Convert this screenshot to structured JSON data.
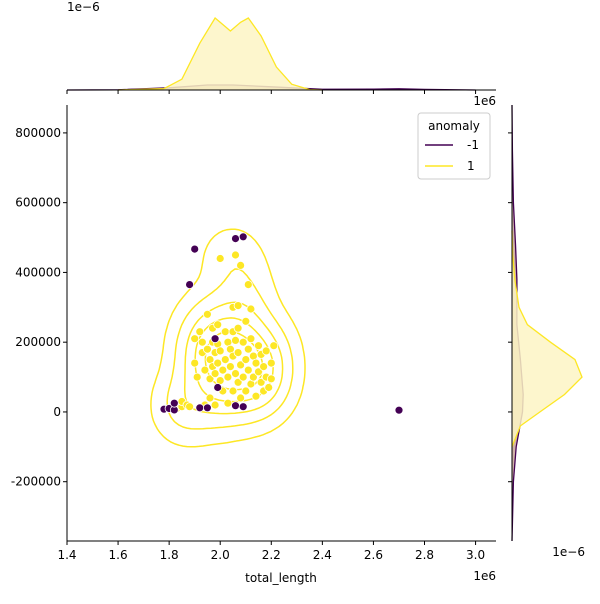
{
  "chart_data": {
    "type": "scatter",
    "xlabel": "total_length",
    "ylabel": "",
    "x_offset_label": "1e6",
    "top_offset_label": "1e−6",
    "right_top_offset_label": "1e6",
    "right_bottom_offset_label": "1e−6",
    "xlim": [
      1.4,
      3.08
    ],
    "ylim": [
      -370000,
      880000
    ],
    "x_ticks": [
      1.4,
      1.6,
      1.8,
      2.0,
      2.2,
      2.4,
      2.6,
      2.8,
      3.0
    ],
    "x_tick_labels": [
      "1.4",
      "1.6",
      "1.8",
      "2.0",
      "2.2",
      "2.4",
      "2.6",
      "2.8",
      "3.0"
    ],
    "y_ticks": [
      -200000,
      0,
      200000,
      400000,
      600000,
      800000
    ],
    "y_tick_labels": [
      "-200000",
      "0",
      "200000",
      "400000",
      "600000",
      "800000"
    ],
    "grid": false,
    "legend": {
      "title": "anomaly",
      "placement": "top-right",
      "entries": [
        {
          "label": "-1",
          "color": "#440154"
        },
        {
          "label": "1",
          "color": "#fde725"
        }
      ]
    },
    "series": [
      {
        "name": "-1",
        "color": "#440154",
        "points": [
          [
            1.78,
            8000
          ],
          [
            1.8,
            10000
          ],
          [
            1.82,
            6000
          ],
          [
            1.82,
            25000
          ],
          [
            1.88,
            365000
          ],
          [
            1.9,
            467000
          ],
          [
            1.92,
            12000
          ],
          [
            1.95,
            12000
          ],
          [
            1.98,
            210000
          ],
          [
            1.99,
            70000
          ],
          [
            2.06,
            497000
          ],
          [
            2.06,
            18000
          ],
          [
            2.09,
            502000
          ],
          [
            2.09,
            15000
          ],
          [
            2.7,
            5000
          ]
        ]
      },
      {
        "name": "1",
        "color": "#fde725",
        "points": [
          [
            1.83,
            10000
          ],
          [
            1.85,
            15000
          ],
          [
            1.85,
            30000
          ],
          [
            1.87,
            20000
          ],
          [
            1.88,
            15000
          ],
          [
            1.9,
            210000
          ],
          [
            1.9,
            140000
          ],
          [
            1.91,
            100000
          ],
          [
            1.92,
            230000
          ],
          [
            1.93,
            200000
          ],
          [
            1.93,
            170000
          ],
          [
            1.94,
            120000
          ],
          [
            1.94,
            20000
          ],
          [
            1.95,
            280000
          ],
          [
            1.95,
            180000
          ],
          [
            1.96,
            150000
          ],
          [
            1.96,
            95000
          ],
          [
            1.96,
            40000
          ],
          [
            1.97,
            240000
          ],
          [
            1.97,
            200000
          ],
          [
            1.97,
            130000
          ],
          [
            1.98,
            170000
          ],
          [
            1.98,
            110000
          ],
          [
            1.98,
            20000
          ],
          [
            1.99,
            250000
          ],
          [
            1.99,
            195000
          ],
          [
            1.99,
            140000
          ],
          [
            2.0,
            440000
          ],
          [
            2.0,
            175000
          ],
          [
            2.0,
            90000
          ],
          [
            2.01,
            120000
          ],
          [
            2.01,
            60000
          ],
          [
            2.02,
            230000
          ],
          [
            2.02,
            150000
          ],
          [
            2.03,
            200000
          ],
          [
            2.03,
            100000
          ],
          [
            2.03,
            25000
          ],
          [
            2.04,
            180000
          ],
          [
            2.04,
            130000
          ],
          [
            2.05,
            300000
          ],
          [
            2.05,
            230000
          ],
          [
            2.05,
            160000
          ],
          [
            2.05,
            60000
          ],
          [
            2.06,
            450000
          ],
          [
            2.06,
            205000
          ],
          [
            2.06,
            110000
          ],
          [
            2.07,
            305000
          ],
          [
            2.07,
            240000
          ],
          [
            2.07,
            170000
          ],
          [
            2.07,
            85000
          ],
          [
            2.08,
            420000
          ],
          [
            2.08,
            135000
          ],
          [
            2.08,
            40000
          ],
          [
            2.09,
            200000
          ],
          [
            2.09,
            100000
          ],
          [
            2.1,
            260000
          ],
          [
            2.1,
            150000
          ],
          [
            2.1,
            60000
          ],
          [
            2.11,
            365000
          ],
          [
            2.11,
            180000
          ],
          [
            2.11,
            120000
          ],
          [
            2.12,
            295000
          ],
          [
            2.12,
            210000
          ],
          [
            2.12,
            80000
          ],
          [
            2.13,
            160000
          ],
          [
            2.13,
            100000
          ],
          [
            2.14,
            140000
          ],
          [
            2.14,
            45000
          ],
          [
            2.15,
            190000
          ],
          [
            2.15,
            115000
          ],
          [
            2.16,
            165000
          ],
          [
            2.16,
            85000
          ],
          [
            2.17,
            130000
          ],
          [
            2.17,
            60000
          ],
          [
            2.18,
            175000
          ],
          [
            2.18,
            100000
          ],
          [
            2.19,
            70000
          ],
          [
            2.2,
            140000
          ],
          [
            2.2,
            95000
          ],
          [
            2.21,
            190000
          ]
        ]
      }
    ],
    "marginal_x": {
      "series": [
        {
          "name": "-1",
          "color": "#440154",
          "fill": "#c8a59a",
          "density": [
            [
              1.4,
              0
            ],
            [
              1.6,
              0.003
            ],
            [
              1.8,
              0.03
            ],
            [
              1.95,
              0.07
            ],
            [
              2.05,
              0.07
            ],
            [
              2.2,
              0.045
            ],
            [
              2.4,
              0.01
            ],
            [
              2.6,
              0.012
            ],
            [
              2.7,
              0.016
            ],
            [
              2.8,
              0.008
            ],
            [
              3.0,
              0
            ]
          ]
        },
        {
          "name": "1",
          "color": "#fde725",
          "fill": "#fdf5c4",
          "density": [
            [
              1.6,
              0
            ],
            [
              1.78,
              0.02
            ],
            [
              1.85,
              0.15
            ],
            [
              1.92,
              0.65
            ],
            [
              1.98,
              1.0
            ],
            [
              2.02,
              0.88
            ],
            [
              2.04,
              0.82
            ],
            [
              2.08,
              0.94
            ],
            [
              2.11,
              1.0
            ],
            [
              2.16,
              0.75
            ],
            [
              2.22,
              0.32
            ],
            [
              2.28,
              0.08
            ],
            [
              2.35,
              0.005
            ],
            [
              2.4,
              0
            ]
          ]
        }
      ]
    },
    "marginal_y": {
      "series": [
        {
          "name": "-1",
          "color": "#440154",
          "fill": "#c8a59a",
          "density": [
            [
              -370000,
              0
            ],
            [
              -200000,
              0.02
            ],
            [
              -100000,
              0.06
            ],
            [
              0,
              0.15
            ],
            [
              50000,
              0.16
            ],
            [
              150000,
              0.12
            ],
            [
              250000,
              0.07
            ],
            [
              380000,
              0.07
            ],
            [
              480000,
              0.05
            ],
            [
              600000,
              0.02
            ],
            [
              750000,
              0.005
            ],
            [
              880000,
              0
            ]
          ]
        },
        {
          "name": "1",
          "color": "#fde725",
          "fill": "#fdf5c4",
          "density": [
            [
              -100000,
              0
            ],
            [
              -40000,
              0.12
            ],
            [
              0,
              0.4
            ],
            [
              50000,
              0.75
            ],
            [
              100000,
              1.0
            ],
            [
              150000,
              0.9
            ],
            [
              200000,
              0.55
            ],
            [
              250000,
              0.22
            ],
            [
              300000,
              0.1
            ],
            [
              380000,
              0.04
            ],
            [
              450000,
              0.01
            ],
            [
              520000,
              0
            ]
          ]
        }
      ]
    },
    "kde_contours_series": "1"
  }
}
